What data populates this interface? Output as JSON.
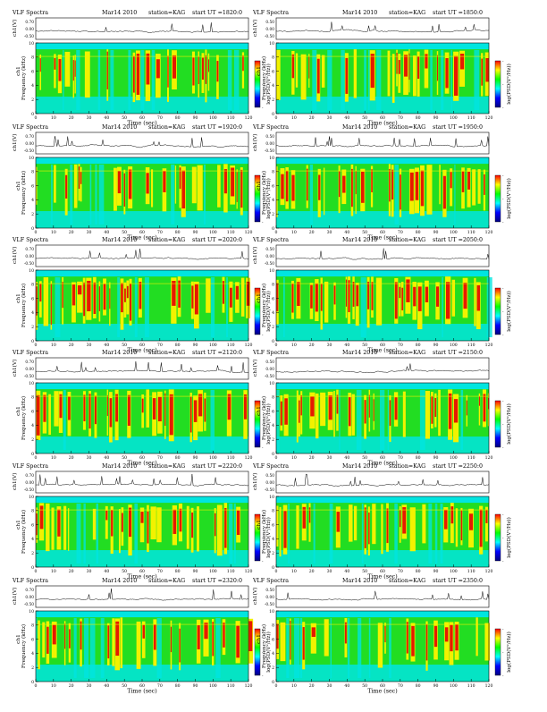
{
  "chart_data": [
    {
      "type": "heatmap",
      "title": "VLF Spectra",
      "date": "Mar14 2010",
      "station": "station=KAG",
      "start": "start  UT  =1820:0",
      "waveform_ylabel": "ch1(V)",
      "waveform_yticks": [
        "0.70",
        "0.00",
        "-0.50"
      ],
      "ylabel": "Frequency (kHz)",
      "channel_label": "ch1",
      "xlabel": "Time (sec)",
      "xlim": [
        0,
        120
      ],
      "ylim": [
        0,
        10
      ],
      "xticks": [
        "0",
        "10",
        "20",
        "30",
        "40",
        "50",
        "60",
        "70",
        "80",
        "90",
        "100",
        "110",
        "120"
      ],
      "yticks": [
        "0",
        "2",
        "4",
        "6",
        "8",
        "10"
      ],
      "colorbar_label": "log(PSD(V²/Hz))",
      "colorbar_ticks": [
        "-",
        "-",
        "-"
      ]
    },
    {
      "type": "heatmap",
      "title": "VLF Spectra",
      "date": "Mar14 2010",
      "station": "station=KAG",
      "start": "start  UT  =1850:0",
      "waveform_ylabel": "ch1(V)",
      "waveform_yticks": [
        "0.50",
        "0.00",
        "-0.50"
      ],
      "ylabel": "Frequency (kHz)",
      "channel_label": "ch1",
      "xlabel": "Time (sec)",
      "xlim": [
        0,
        120
      ],
      "ylim": [
        0,
        10
      ],
      "xticks": [
        "0",
        "10",
        "20",
        "30",
        "40",
        "50",
        "60",
        "70",
        "80",
        "90",
        "100",
        "110",
        "120"
      ],
      "yticks": [
        "0",
        "2",
        "4",
        "6",
        "8",
        "10"
      ],
      "colorbar_label": "log(PSD(V²/Hz))",
      "colorbar_ticks": [
        "-",
        "-",
        "-"
      ]
    },
    {
      "type": "heatmap",
      "title": "VLF Spectra",
      "date": "Mar14 2010",
      "station": "station=KAG",
      "start": "start  UT  =1920:0",
      "waveform_ylabel": "ch1(V)",
      "waveform_yticks": [
        "0.70",
        "0.00",
        "-0.50"
      ],
      "ylabel": "Frequency (kHz)",
      "channel_label": "ch1",
      "xlabel": "Time (sec)",
      "xlim": [
        0,
        120
      ],
      "ylim": [
        0,
        10
      ],
      "xticks": [
        "0",
        "10",
        "20",
        "30",
        "40",
        "50",
        "60",
        "70",
        "80",
        "90",
        "100",
        "110",
        "120"
      ],
      "yticks": [
        "0",
        "2",
        "4",
        "6",
        "8",
        "10"
      ],
      "colorbar_label": "log(PSD(V²/Hz))",
      "colorbar_ticks": [
        "-",
        "-",
        "-"
      ]
    },
    {
      "type": "heatmap",
      "title": "VLF Spectra",
      "date": "Mar14 2010",
      "station": "station=KAG",
      "start": "start  UT  =1950:0",
      "waveform_ylabel": "ch1(V)",
      "waveform_yticks": [
        "0.50",
        "0.00",
        "-0.50"
      ],
      "ylabel": "Frequency (kHz)",
      "channel_label": "ch1",
      "xlabel": "Time (sec)",
      "xlim": [
        0,
        120
      ],
      "ylim": [
        0,
        10
      ],
      "xticks": [
        "0",
        "10",
        "20",
        "30",
        "40",
        "50",
        "60",
        "70",
        "80",
        "90",
        "100",
        "110",
        "120"
      ],
      "yticks": [
        "0",
        "2",
        "4",
        "6",
        "8",
        "10"
      ],
      "colorbar_label": "log(PSD(V²/Hz))",
      "colorbar_ticks": [
        "-",
        "-",
        "-"
      ]
    },
    {
      "type": "heatmap",
      "title": "VLF Spectra",
      "date": "Mar14 2010",
      "station": "station=KAG",
      "start": "start  UT  =2020:0",
      "waveform_ylabel": "ch1(V)",
      "waveform_yticks": [
        "0.70",
        "0.00",
        "-0.50"
      ],
      "ylabel": "Frequency (kHz)",
      "channel_label": "ch1",
      "xlabel": "Time (sec)",
      "xlim": [
        0,
        120
      ],
      "ylim": [
        0,
        10
      ],
      "xticks": [
        "0",
        "10",
        "20",
        "30",
        "40",
        "50",
        "60",
        "70",
        "80",
        "90",
        "100",
        "110",
        "120"
      ],
      "yticks": [
        "0",
        "2",
        "4",
        "6",
        "8",
        "10"
      ],
      "colorbar_label": "log(PSD(V²/Hz))",
      "colorbar_ticks": [
        "-",
        "-",
        "-"
      ]
    },
    {
      "type": "heatmap",
      "title": "VLF Spectra",
      "date": "Mar14 2010",
      "station": "station=KAG",
      "start": "start  UT  =2050:0",
      "waveform_ylabel": "ch1(V)",
      "waveform_yticks": [
        "0.50",
        "0.00",
        "-0.50"
      ],
      "ylabel": "Frequency (kHz)",
      "channel_label": "ch1",
      "xlabel": "Time (sec)",
      "xlim": [
        0,
        120
      ],
      "ylim": [
        0,
        10
      ],
      "xticks": [
        "0",
        "10",
        "20",
        "30",
        "40",
        "50",
        "60",
        "70",
        "80",
        "90",
        "100",
        "110",
        "120"
      ],
      "yticks": [
        "0",
        "2",
        "4",
        "6",
        "8",
        "10"
      ],
      "colorbar_label": "log(PSD(V²/Hz))",
      "colorbar_ticks": [
        "-",
        "-",
        "-"
      ]
    },
    {
      "type": "heatmap",
      "title": "VLF Spectra",
      "date": "Mar14 2010",
      "station": "station=KAG",
      "start": "start  UT  =2120:0",
      "waveform_ylabel": "ch1(V)",
      "waveform_yticks": [
        "0.70",
        "0.00",
        "-0.50"
      ],
      "ylabel": "Frequency (kHz)",
      "channel_label": "ch1",
      "xlabel": "Time (sec)",
      "xlim": [
        0,
        120
      ],
      "ylim": [
        0,
        10
      ],
      "xticks": [
        "0",
        "10",
        "20",
        "30",
        "40",
        "50",
        "60",
        "70",
        "80",
        "90",
        "100",
        "110",
        "120"
      ],
      "yticks": [
        "0",
        "2",
        "4",
        "6",
        "8",
        "10"
      ],
      "colorbar_label": "log(PSD(V²/Hz))",
      "colorbar_ticks": [
        "-",
        "-",
        "-"
      ]
    },
    {
      "type": "heatmap",
      "title": "VLF Spectra",
      "date": "Mar14 2010",
      "station": "station=KAG",
      "start": "start  UT  =2150:0",
      "waveform_ylabel": "ch1(V)",
      "waveform_yticks": [
        "0.50",
        "0.00",
        "-0.50"
      ],
      "ylabel": "Frequency (kHz)",
      "channel_label": "ch1",
      "xlabel": "Time (sec)",
      "xlim": [
        0,
        120
      ],
      "ylim": [
        0,
        10
      ],
      "xticks": [
        "0",
        "10",
        "20",
        "30",
        "40",
        "50",
        "60",
        "70",
        "80",
        "90",
        "100",
        "110",
        "120"
      ],
      "yticks": [
        "0",
        "2",
        "4",
        "6",
        "8",
        "10"
      ],
      "colorbar_label": "log(PSD(V²/Hz))",
      "colorbar_ticks": [
        "-",
        "-",
        "-"
      ]
    },
    {
      "type": "heatmap",
      "title": "VLF Spectra",
      "date": "Mar14 2010",
      "station": "station=KAG",
      "start": "start  UT  =2220:0",
      "waveform_ylabel": "ch1(V)",
      "waveform_yticks": [
        "0.70",
        "0.00",
        "-0.50"
      ],
      "ylabel": "Frequency (kHz)",
      "channel_label": "ch1",
      "xlabel": "Time (sec)",
      "xlim": [
        0,
        120
      ],
      "ylim": [
        0,
        10
      ],
      "xticks": [
        "0",
        "10",
        "20",
        "30",
        "40",
        "50",
        "60",
        "70",
        "80",
        "90",
        "100",
        "110",
        "120"
      ],
      "yticks": [
        "0",
        "2",
        "4",
        "6",
        "8",
        "10"
      ],
      "colorbar_label": "log(PSD(V²/Hz))",
      "colorbar_ticks": [
        "-",
        "-",
        "-"
      ]
    },
    {
      "type": "heatmap",
      "title": "VLF Spectra",
      "date": "Mar14 2010",
      "station": "station=KAG",
      "start": "start  UT  =2250:0",
      "waveform_ylabel": "ch1(V)",
      "waveform_yticks": [
        "0.50",
        "0.00",
        "-0.50"
      ],
      "ylabel": "Frequency (kHz)",
      "channel_label": "ch1",
      "xlabel": "Time (sec)",
      "xlim": [
        0,
        120
      ],
      "ylim": [
        0,
        10
      ],
      "xticks": [
        "0",
        "10",
        "20",
        "30",
        "40",
        "50",
        "60",
        "70",
        "80",
        "90",
        "100",
        "110",
        "120"
      ],
      "yticks": [
        "0",
        "2",
        "4",
        "6",
        "8",
        "10"
      ],
      "colorbar_label": "log(PSD(V²/Hz))",
      "colorbar_ticks": [
        "-",
        "-",
        "-"
      ]
    },
    {
      "type": "heatmap",
      "title": "VLF Spectra",
      "date": "Mar14 2010",
      "station": "station=KAG",
      "start": "start  UT  =2320:0",
      "waveform_ylabel": "ch1(V)",
      "waveform_yticks": [
        "0.70",
        "0.00",
        "-0.50"
      ],
      "ylabel": "Frequency (kHz)",
      "channel_label": "ch1",
      "xlabel": "Time (sec)",
      "xlim": [
        0,
        120
      ],
      "ylim": [
        0,
        10
      ],
      "xticks": [
        "0",
        "10",
        "20",
        "30",
        "40",
        "50",
        "60",
        "70",
        "80",
        "90",
        "100",
        "110",
        "120"
      ],
      "yticks": [
        "0",
        "2",
        "4",
        "6",
        "8",
        "10"
      ],
      "colorbar_label": "log(PSD(V²/Hz))",
      "colorbar_ticks": [
        "-",
        "-",
        "-"
      ]
    },
    {
      "type": "heatmap",
      "title": "VLF Spectra",
      "date": "Mar14 2010",
      "station": "station=KAG",
      "start": "start  UT  =2350:0",
      "waveform_ylabel": "ch1(V)",
      "waveform_yticks": [
        "0.50",
        "0.00",
        "-0.50"
      ],
      "ylabel": "Frequency (kHz)",
      "channel_label": "ch1",
      "xlabel": "Time (sec)",
      "xlim": [
        0,
        120
      ],
      "ylim": [
        0,
        10
      ],
      "xticks": [
        "0",
        "10",
        "20",
        "30",
        "40",
        "50",
        "60",
        "70",
        "80",
        "90",
        "100",
        "110",
        "120"
      ],
      "yticks": [
        "0",
        "2",
        "4",
        "6",
        "8",
        "10"
      ],
      "colorbar_label": "log(PSD(V²/Hz))",
      "colorbar_ticks": [
        "-",
        "-",
        "-"
      ]
    }
  ],
  "colors": {
    "background": "#ffffff",
    "spectrogram_low": "#00e5e0",
    "spectrogram_mid": "#22dd22",
    "spectrogram_high": "#f2f200",
    "spectrogram_peak": "#e51a00",
    "waveform": "#000000",
    "colorbar": [
      "#ff0000",
      "#ffff00",
      "#00ff00",
      "#00ffff",
      "#0000ff",
      "#000080"
    ]
  }
}
